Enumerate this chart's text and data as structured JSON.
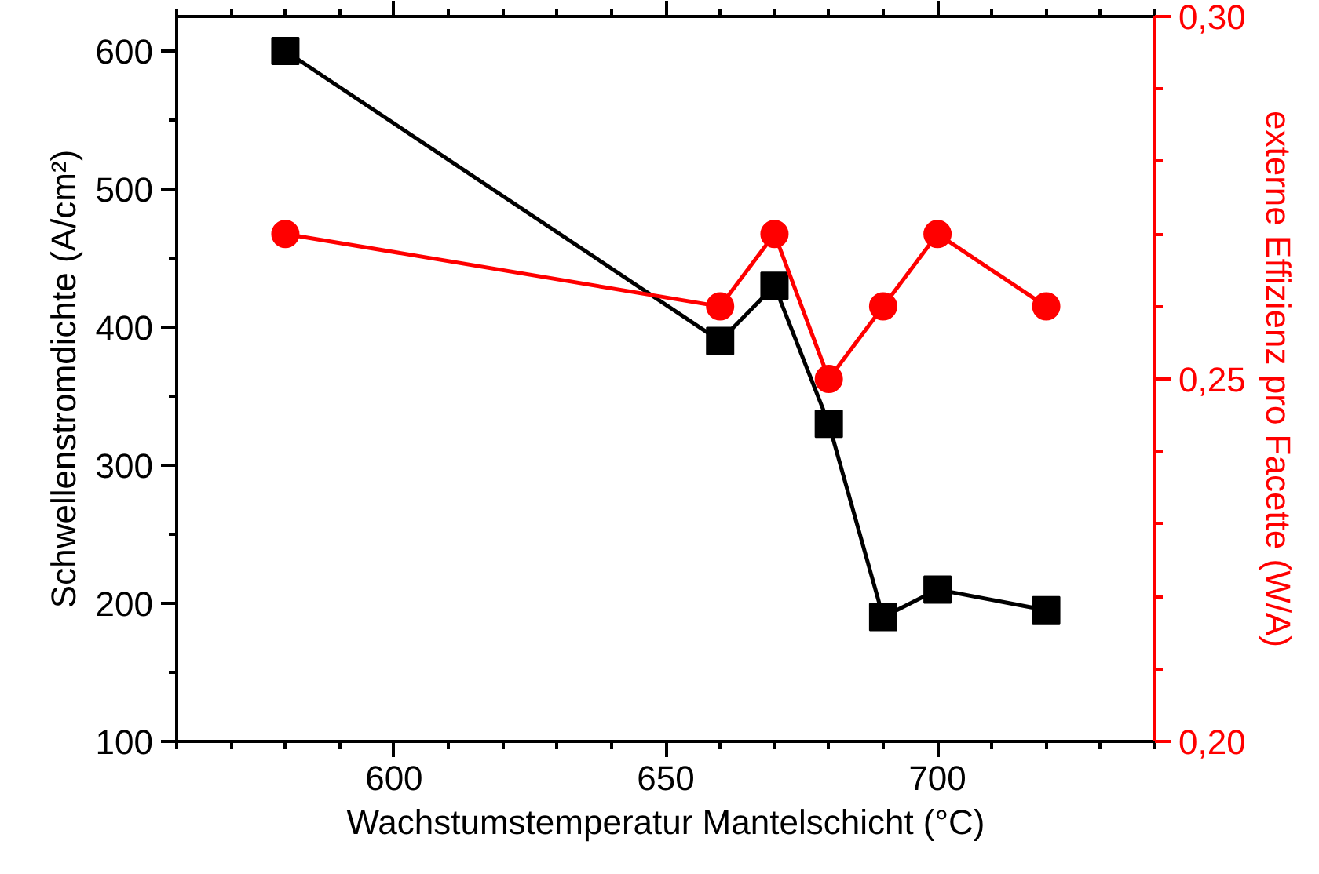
{
  "chart_data": {
    "type": "line",
    "xlabel": "Wachstumstemperatur Mantelschicht (°C)",
    "ylabel": "Schwellenstromdichte (A/cm²)",
    "y2label": "externe Effizienz pro Facette (W/A)",
    "xlim": [
      560,
      740
    ],
    "xticks": [
      600,
      650,
      700
    ],
    "ylim": [
      100,
      625
    ],
    "yticks": [
      100,
      200,
      300,
      400,
      500,
      600
    ],
    "y2lim": [
      0.2,
      0.3
    ],
    "y2ticks": [
      {
        "value": 0.2,
        "label": "0,20"
      },
      {
        "value": 0.25,
        "label": "0,25"
      },
      {
        "value": 0.3,
        "label": "0,30"
      }
    ],
    "grid": false,
    "series": [
      {
        "color": "#000000",
        "marker": "square",
        "x": [
          580,
          660,
          670,
          680,
          690,
          700,
          720
        ],
        "values": [
          600,
          390,
          430,
          330,
          190,
          210,
          195
        ]
      },
      {
        "color": "#ff0000",
        "marker": "circle",
        "axis": "y2",
        "x": [
          580,
          660,
          670,
          680,
          690,
          700,
          720
        ],
        "values": [
          0.27,
          0.26,
          0.27,
          0.25,
          0.26,
          0.27,
          0.26
        ]
      }
    ]
  }
}
